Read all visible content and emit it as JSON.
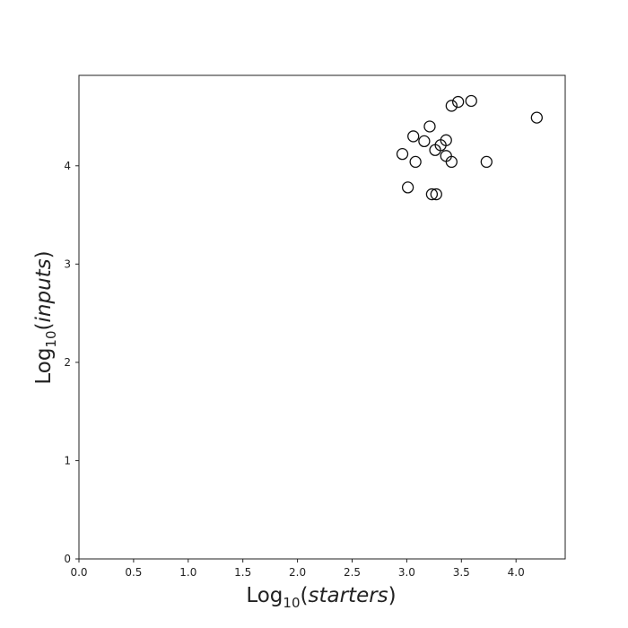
{
  "chart_data": {
    "type": "scatter",
    "title": "",
    "xlabel": {
      "prefix": "Log",
      "subscript": "10",
      "open": "(",
      "var": "starters",
      "close": ")"
    },
    "ylabel": {
      "prefix": "Log",
      "subscript": "10",
      "open": "(",
      "var": "inputs",
      "close": ")"
    },
    "xlim": [
      0,
      4.45
    ],
    "ylim": [
      0,
      4.92
    ],
    "xticks": [
      "0.0",
      "0.5",
      "1.0",
      "1.5",
      "2.0",
      "2.5",
      "3.0",
      "3.5",
      "4.0"
    ],
    "yticks": [
      "0",
      "1",
      "2",
      "3",
      "4"
    ],
    "grid": false,
    "marker": "open-circle",
    "marker_color": "#111111",
    "points": [
      {
        "x": 2.96,
        "y": 4.12
      },
      {
        "x": 3.01,
        "y": 3.78
      },
      {
        "x": 3.06,
        "y": 4.3
      },
      {
        "x": 3.08,
        "y": 4.04
      },
      {
        "x": 3.16,
        "y": 4.25
      },
      {
        "x": 3.21,
        "y": 4.4
      },
      {
        "x": 3.23,
        "y": 3.71
      },
      {
        "x": 3.27,
        "y": 3.71
      },
      {
        "x": 3.26,
        "y": 4.16
      },
      {
        "x": 3.31,
        "y": 4.21
      },
      {
        "x": 3.36,
        "y": 4.26
      },
      {
        "x": 3.36,
        "y": 4.1
      },
      {
        "x": 3.41,
        "y": 4.04
      },
      {
        "x": 3.41,
        "y": 4.61
      },
      {
        "x": 3.47,
        "y": 4.65
      },
      {
        "x": 3.59,
        "y": 4.66
      },
      {
        "x": 3.73,
        "y": 4.04
      },
      {
        "x": 4.19,
        "y": 4.49
      }
    ]
  }
}
